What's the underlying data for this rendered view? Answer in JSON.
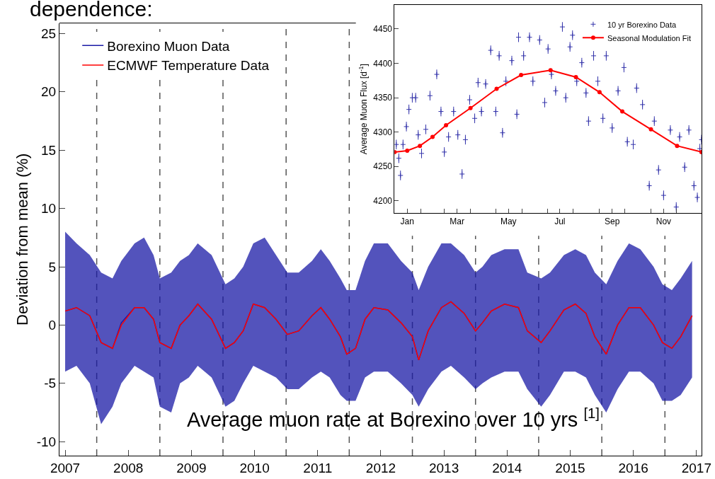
{
  "chart_data": [
    {
      "type": "line",
      "ylabel": "Deviation from mean (%)",
      "x": [
        2007.0,
        2007.18,
        2007.39,
        2007.57,
        2007.75,
        2007.89,
        2008.1,
        2008.25,
        2008.4,
        2008.5,
        2008.68,
        2008.82,
        2008.96,
        2009.1,
        2009.32,
        2009.54,
        2009.68,
        2009.82,
        2009.98,
        2010.16,
        2010.34,
        2010.52,
        2010.7,
        2010.91,
        2011.05,
        2011.19,
        2011.36,
        2011.46,
        2011.6,
        2011.75,
        2011.89,
        2012.11,
        2012.32,
        2012.5,
        2012.6,
        2012.75,
        2012.96,
        2013.11,
        2013.32,
        2013.5,
        2013.61,
        2013.75,
        2013.96,
        2014.18,
        2014.32,
        2014.54,
        2014.68,
        2014.9,
        2015.08,
        2015.25,
        2015.39,
        2015.57,
        2015.75,
        2015.93,
        2016.11,
        2016.32,
        2016.46,
        2016.61,
        2016.75,
        2016.93
      ],
      "series": [
        {
          "name": "Borexino Muon Data",
          "color": "#1a1aa6",
          "values": [
            1.2,
            1.5,
            0.8,
            -1.5,
            -2.0,
            0.2,
            1.5,
            1.5,
            0.5,
            -1.5,
            -2.0,
            0,
            0.8,
            1.8,
            0.5,
            -2.0,
            -1.5,
            -0.5,
            1.8,
            1.5,
            0.5,
            -0.8,
            -0.5,
            0.8,
            1.5,
            0.5,
            -1.0,
            -2.5,
            -2.0,
            0.5,
            1.5,
            1.3,
            0.2,
            -1.0,
            -3.0,
            -0.5,
            1.5,
            2.0,
            1.0,
            -0.5,
            0.2,
            1.2,
            1.8,
            1.5,
            -0.5,
            -1.5,
            -0.5,
            1.3,
            1.8,
            1.0,
            -1.0,
            -2.5,
            0,
            1.5,
            1.5,
            0,
            -1.5,
            -2.0,
            -1.0,
            0.8
          ],
          "lower": [
            -4,
            -3.5,
            -5,
            -8.5,
            -7,
            -5,
            -3.5,
            -4,
            -4.5,
            -7,
            -7.5,
            -5,
            -4.5,
            -3.5,
            -4.5,
            -7,
            -6.5,
            -5,
            -3.5,
            -4,
            -4.5,
            -5.5,
            -5.5,
            -4.5,
            -4,
            -4.5,
            -6,
            -6.5,
            -6.5,
            -4.5,
            -4,
            -4,
            -5,
            -6,
            -7,
            -5.5,
            -4,
            -3.5,
            -4.5,
            -5.5,
            -5,
            -4.5,
            -4,
            -4,
            -5.5,
            -7,
            -6,
            -4,
            -4,
            -4.5,
            -6,
            -7.5,
            -5.5,
            -4,
            -4,
            -5,
            -6.5,
            -6.5,
            -6,
            -4.5
          ],
          "upper": [
            8,
            7,
            6,
            4.5,
            4,
            5.5,
            7,
            7.5,
            6,
            4,
            4.5,
            5.5,
            6,
            7,
            6,
            3.5,
            4,
            5,
            7,
            7.5,
            6,
            4.5,
            4.5,
            5.5,
            6.5,
            5.5,
            4,
            3,
            3,
            5.5,
            7,
            7,
            5.5,
            4.5,
            3,
            5,
            7,
            7,
            6,
            4.5,
            5,
            6,
            6.5,
            6.5,
            4.5,
            4,
            4.5,
            6,
            6.5,
            6,
            4.5,
            3.5,
            5.5,
            7,
            6.5,
            5,
            3.5,
            3,
            4,
            5.5
          ]
        },
        {
          "name": "ECMWF Temperature Data",
          "color": "#ff0000",
          "values": [
            1.2,
            1.5,
            0.8,
            -1.5,
            -2.0,
            0,
            1.5,
            1.5,
            0.5,
            -1.5,
            -2.0,
            0,
            0.8,
            1.8,
            0.5,
            -2.0,
            -1.5,
            -0.5,
            1.8,
            1.5,
            0.5,
            -0.8,
            -0.5,
            0.8,
            1.5,
            0.5,
            -1.0,
            -2.5,
            -2.0,
            0.5,
            1.5,
            1.3,
            0.2,
            -1.0,
            -3.0,
            -0.5,
            1.5,
            2.0,
            1.0,
            -0.5,
            0.2,
            1.2,
            1.8,
            1.5,
            -0.5,
            -1.5,
            -0.5,
            1.3,
            1.8,
            1.0,
            -1.0,
            -2.5,
            0,
            1.5,
            1.5,
            0,
            -1.5,
            -2.0,
            -1.0,
            0.8
          ]
        }
      ],
      "xlim": [
        2006.91,
        2017.08
      ],
      "xticks": [
        2007,
        2008,
        2009,
        2010,
        2011,
        2012,
        2013,
        2014,
        2015,
        2016,
        2017
      ],
      "ylim": [
        -11.2,
        25.9
      ],
      "yticks": [
        -10,
        -5,
        0,
        5,
        10,
        15,
        20,
        25
      ],
      "ref_lines": [
        {
          "axis": "x",
          "value": 2007.5,
          "color": "#555555",
          "line_style": "dashed"
        },
        {
          "axis": "x",
          "value": 2008.5,
          "color": "#555555",
          "line_style": "dashed"
        },
        {
          "axis": "x",
          "value": 2009.5,
          "color": "#555555",
          "line_style": "dashed"
        },
        {
          "axis": "x",
          "value": 2010.5,
          "color": "#555555",
          "line_style": "dashed"
        },
        {
          "axis": "x",
          "value": 2011.5,
          "color": "#555555",
          "line_style": "dashed"
        },
        {
          "axis": "x",
          "value": 2012.5,
          "color": "#555555",
          "line_style": "dashed"
        },
        {
          "axis": "x",
          "value": 2013.5,
          "color": "#555555",
          "line_style": "dashed"
        },
        {
          "axis": "x",
          "value": 2014.5,
          "color": "#555555",
          "line_style": "dashed"
        },
        {
          "axis": "x",
          "value": 2015.5,
          "color": "#555555",
          "line_style": "dashed"
        },
        {
          "axis": "x",
          "value": 2016.5,
          "color": "#555555",
          "line_style": "dashed"
        }
      ],
      "legend": "top left",
      "grid": false,
      "annotations": [
        "dependence:",
        "Average muon rate at Borexino over 10 yrs $^{[1]}$"
      ]
    },
    {
      "type": "scatter",
      "ylabel": "Average Muon Flux [d$^{-1}$]",
      "marker": "cross",
      "series": [
        {
          "name": "10 yr Borexino Data",
          "color": "#3333aa",
          "type": "scatter",
          "x": [
            "--01-03",
            "--01-06",
            "--01-08",
            "--01-11",
            "--01-15",
            "--01-18",
            "--01-22",
            "--01-26",
            "--01-29",
            "--02-02",
            "--02-07",
            "--02-12",
            "--02-20",
            "--02-25",
            "--03-01",
            "--03-06",
            "--03-12",
            "--03-17",
            "--03-22",
            "--03-26",
            "--03-31",
            "--04-06",
            "--04-10",
            "--04-14",
            "--04-19",
            "--04-25",
            "--05-01",
            "--05-05",
            "--05-09",
            "--05-13",
            "--05-20",
            "--05-26",
            "--05-28",
            "--06-03",
            "--06-10",
            "--06-14",
            "--06-22",
            "--06-28",
            "--07-02",
            "--07-06",
            "--07-11",
            "--07-19",
            "--07-23",
            "--07-28",
            "--07-31",
            "--08-05",
            "--08-11",
            "--08-16",
            "--08-19",
            "--08-25",
            "--08-30",
            "--09-05",
            "--09-09",
            "--09-16",
            "--09-23",
            "--09-30",
            "--10-04",
            "--10-11",
            "--10-15",
            "--10-22",
            "--10-30",
            "--11-05",
            "--11-10",
            "--11-16",
            "--11-24",
            "--12-01",
            "--12-05",
            "--12-11",
            "--12-16",
            "--12-22",
            "--12-26",
            "--12-29",
            "--12-31"
          ],
          "values": [
            4282,
            4262,
            4237,
            4282,
            4308,
            4333,
            4350,
            4350,
            4296,
            4269,
            4304,
            4353,
            4384,
            4330,
            4271,
            4293,
            4330,
            4296,
            4239,
            4289,
            4347,
            4320,
            4372,
            4330,
            4370,
            4419,
            4330,
            4411,
            4299,
            4374,
            4404,
            4326,
            4438,
            4411,
            4438,
            4374,
            4434,
            4343,
            4421,
            4384,
            4360,
            4453,
            4350,
            4424,
            4441,
            4374,
            4401,
            4357,
            4316,
            4411,
            4374,
            4320,
            4411,
            4306,
            4360,
            4394,
            4286,
            4282,
            4364,
            4340,
            4222,
            4316,
            4245,
            4208,
            4303,
            4191,
            4293,
            4249,
            4303,
            4222,
            4205,
            4276,
            4289
          ],
          "errors": [
            7,
            7,
            7,
            7,
            7,
            7,
            7,
            7,
            7,
            7,
            7,
            7,
            7,
            7,
            7,
            7,
            7,
            7,
            7,
            7,
            7,
            7,
            7,
            7,
            7,
            7,
            7,
            7,
            7,
            7,
            7,
            7,
            7,
            7,
            7,
            7,
            7,
            7,
            7,
            7,
            7,
            7,
            7,
            7,
            7,
            7,
            7,
            7,
            7,
            7,
            7,
            7,
            7,
            7,
            7,
            7,
            7,
            7,
            7,
            7,
            7,
            7,
            7,
            7,
            7,
            7,
            7,
            7,
            7,
            7,
            7,
            7,
            7
          ]
        },
        {
          "name": "Seasonal Modulation Fit",
          "color": "#ff0000",
          "type": "line",
          "x": [
            "--01-01",
            "--01-16",
            "--01-31",
            "--02-15",
            "--03-03",
            "--04-01",
            "--05-02",
            "--05-31",
            "--07-05",
            "--08-04",
            "--09-01",
            "--09-28",
            "--11-01",
            "--12-02",
            "--12-31"
          ],
          "values": [
            4271,
            4273,
            4280,
            4293,
            4310,
            4335,
            4363,
            4383,
            4390,
            4380,
            4358,
            4330,
            4304,
            4280,
            4271
          ]
        }
      ],
      "xlim": [
        "--01-01",
        "--12-31"
      ],
      "xticks": [
        {
          "value": "--01-16",
          "label": "Jan"
        },
        {
          "value": "--02-01",
          "label": null
        },
        {
          "value": "--03-01",
          "label": null
        },
        {
          "value": "--03-16",
          "label": "Mar"
        },
        {
          "value": "--04-01",
          "label": null
        },
        {
          "value": "--05-01",
          "label": null
        },
        {
          "value": "--05-16",
          "label": "May"
        },
        {
          "value": "--06-01",
          "label": null
        },
        {
          "value": "--07-01",
          "label": null
        },
        {
          "value": "--07-16",
          "label": "Jul"
        },
        {
          "value": "--08-01",
          "label": null
        },
        {
          "value": "--09-01",
          "label": null
        },
        {
          "value": "--09-16",
          "label": "Sep"
        },
        {
          "value": "--10-01",
          "label": null
        },
        {
          "value": "--11-01",
          "label": null
        },
        {
          "value": "--11-16",
          "label": "Nov"
        },
        {
          "value": "--12-01",
          "label": null
        }
      ],
      "ylim": [
        4182,
        4485
      ],
      "yticks": [
        4200,
        4250,
        4300,
        4350,
        4400,
        4450
      ],
      "legend": "top right",
      "grid": false
    }
  ]
}
